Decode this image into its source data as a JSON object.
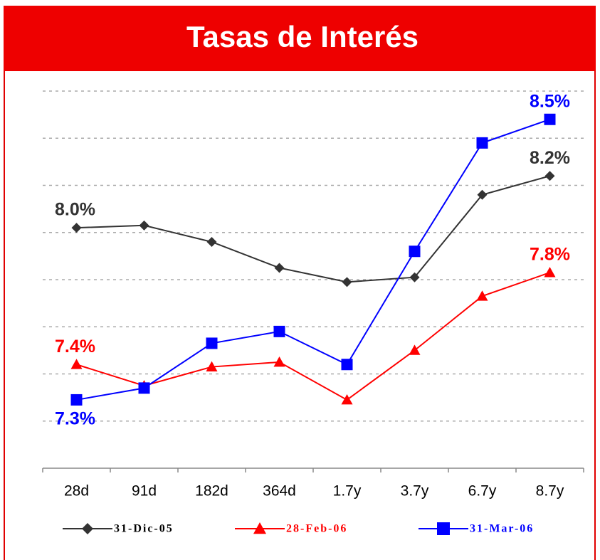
{
  "chart_data": {
    "type": "line",
    "title": "Tasas de Interés",
    "categories": [
      "28d",
      "91d",
      "182d",
      "364d",
      "1.7y",
      "3.7y",
      "6.7y",
      "8.7y"
    ],
    "series": [
      {
        "name": "31-Dic-05",
        "color": "#333333",
        "marker": "diamond",
        "values": [
          8.02,
          8.03,
          7.96,
          7.85,
          7.79,
          7.81,
          8.16,
          8.24
        ],
        "value_labels": [
          "8.0%",
          null,
          null,
          null,
          null,
          null,
          null,
          "8.2%"
        ]
      },
      {
        "name": "28-Feb-06",
        "color": "#ff0000",
        "marker": "triangle",
        "values": [
          7.44,
          7.35,
          7.43,
          7.45,
          7.29,
          7.5,
          7.73,
          7.83
        ],
        "value_labels": [
          "7.4%",
          null,
          null,
          null,
          null,
          null,
          null,
          "7.8%"
        ]
      },
      {
        "name": "31-Mar-06",
        "color": "#0000ff",
        "marker": "square",
        "values": [
          7.29,
          7.34,
          7.53,
          7.58,
          7.44,
          7.92,
          8.38,
          8.48
        ],
        "value_labels": [
          "7.3%",
          null,
          null,
          null,
          null,
          null,
          null,
          "8.5%"
        ]
      }
    ],
    "ylim": [
      7.0,
      8.6
    ],
    "yticks": [
      7.2,
      7.4,
      7.6,
      7.8,
      8.0,
      8.2,
      8.4,
      8.6
    ],
    "grid": true
  }
}
